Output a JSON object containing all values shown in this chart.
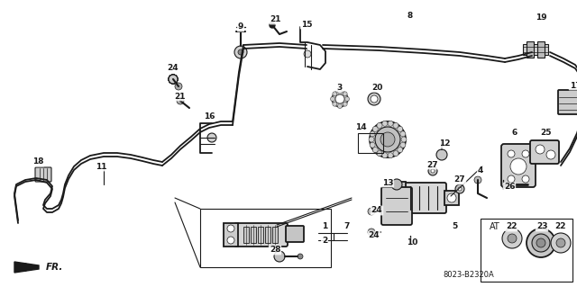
{
  "bg_color": "#ffffff",
  "dc": "#1a1a1a",
  "part_code": "8023-B2320A",
  "figsize": [
    6.4,
    3.19
  ],
  "dpi": 100
}
